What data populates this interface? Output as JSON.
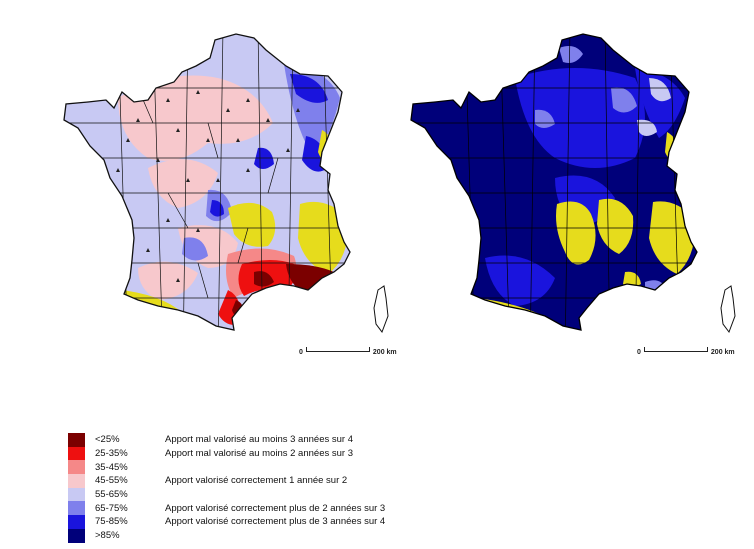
{
  "maps": {
    "left": {
      "name": "map-left",
      "scale": {
        "zero": "0",
        "distance": "200 km"
      }
    },
    "right": {
      "name": "map-right",
      "scale": {
        "zero": "0",
        "distance": "200 km"
      }
    }
  },
  "legend": {
    "items": [
      {
        "range": "<25%",
        "color": "#7b0000",
        "description": "Apport mal valorisé au moins 3 années sur 4"
      },
      {
        "range": "25-35%",
        "color": "#ee1010",
        "description": "Apport mal valorisé au moins 2 années sur 3"
      },
      {
        "range": "35-45%",
        "color": "#f58888",
        "description": ""
      },
      {
        "range": "45-55%",
        "color": "#f7c8cc",
        "description": "Apport valorisé correctement 1 année sur 2"
      },
      {
        "range": "55-65%",
        "color": "#c8c9f3",
        "description": ""
      },
      {
        "range": "65-75%",
        "color": "#7f80ec",
        "description": "Apport valorisé correctement plus de 2 années sur 3"
      },
      {
        "range": "75-85%",
        "color": "#1a14dd",
        "description": "Apport valorisé correctement plus de 3 années sur 4"
      },
      {
        "range": ">85%",
        "color": "#00007a",
        "description": ""
      }
    ]
  },
  "colors": {
    "lt25": "#7b0000",
    "r25_35": "#ee1010",
    "r35_45": "#f58888",
    "r45_55": "#f7c8cc",
    "r55_65": "#c8c9f3",
    "r65_75": "#7f80ec",
    "r75_85": "#1a14dd",
    "gt85": "#00007a",
    "nodata": "#e6dc1c"
  }
}
